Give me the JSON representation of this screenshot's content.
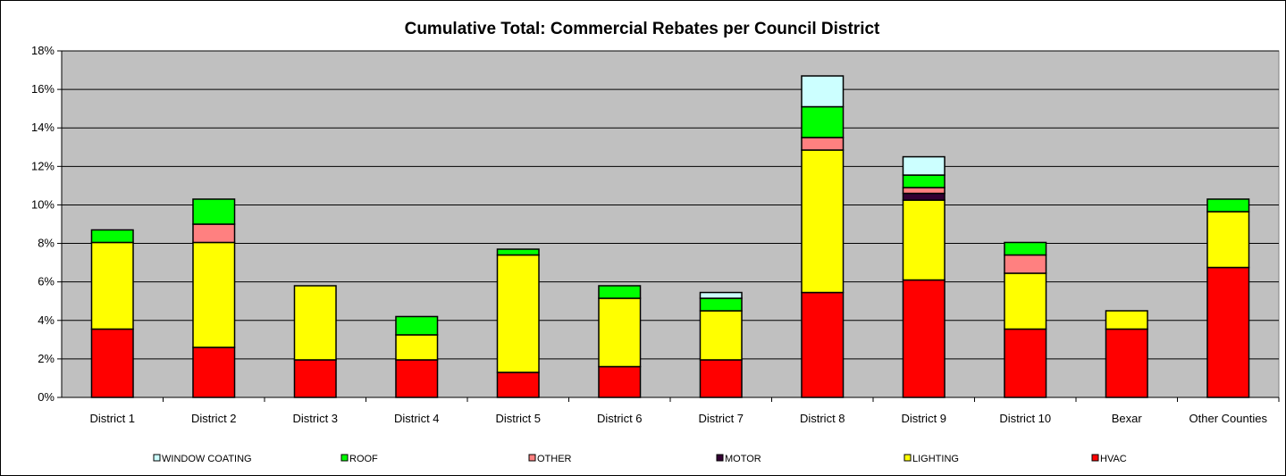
{
  "chart_data": {
    "type": "bar",
    "stacked": true,
    "title": "Cumulative Total: Commercial Rebates per Council District",
    "xlabel": "",
    "ylabel": "",
    "ylim": [
      0,
      18
    ],
    "y_ticks": [
      "0%",
      "2%",
      "4%",
      "6%",
      "8%",
      "10%",
      "12%",
      "14%",
      "16%",
      "18%"
    ],
    "y_tick_values": [
      0,
      2,
      4,
      6,
      8,
      10,
      12,
      14,
      16,
      18
    ],
    "grid": true,
    "legend_position": "bottom",
    "plot_background": "#c0c0c0",
    "categories": [
      "District 1",
      "District 2",
      "District 3",
      "District 4",
      "District 5",
      "District 6",
      "District 7",
      "District 8",
      "District 9",
      "District 10",
      "Bexar",
      "Other Counties"
    ],
    "series": [
      {
        "name": "HVAC",
        "color": "#ff0000",
        "values": [
          3.55,
          2.6,
          1.95,
          1.95,
          1.3,
          1.6,
          1.95,
          5.45,
          6.1,
          3.55,
          3.55,
          6.75
        ]
      },
      {
        "name": "LIGHTING",
        "color": "#ffff00",
        "values": [
          4.5,
          5.45,
          3.85,
          1.3,
          6.1,
          3.55,
          2.55,
          7.4,
          4.15,
          2.9,
          0.95,
          2.9
        ]
      },
      {
        "name": "MOTOR",
        "color": "#330033",
        "values": [
          0,
          0,
          0,
          0,
          0,
          0,
          0,
          0,
          0.35,
          0,
          0,
          0
        ]
      },
      {
        "name": "OTHER",
        "color": "#ff8080",
        "values": [
          0,
          0.95,
          0,
          0,
          0,
          0,
          0,
          0.65,
          0.3,
          0.95,
          0,
          0
        ]
      },
      {
        "name": "ROOF",
        "color": "#00ff00",
        "values": [
          0.65,
          1.3,
          0,
          0.95,
          0.3,
          0.65,
          0.65,
          1.6,
          0.65,
          0.65,
          0,
          0.65
        ]
      },
      {
        "name": "WINDOW COATING",
        "color": "#ccffff",
        "values": [
          0,
          0,
          0,
          0,
          0,
          0,
          0.3,
          1.6,
          0.95,
          0,
          0,
          0
        ]
      }
    ],
    "legend_order": [
      "WINDOW COATING",
      "ROOF",
      "OTHER",
      "MOTOR",
      "LIGHTING",
      "HVAC"
    ]
  }
}
